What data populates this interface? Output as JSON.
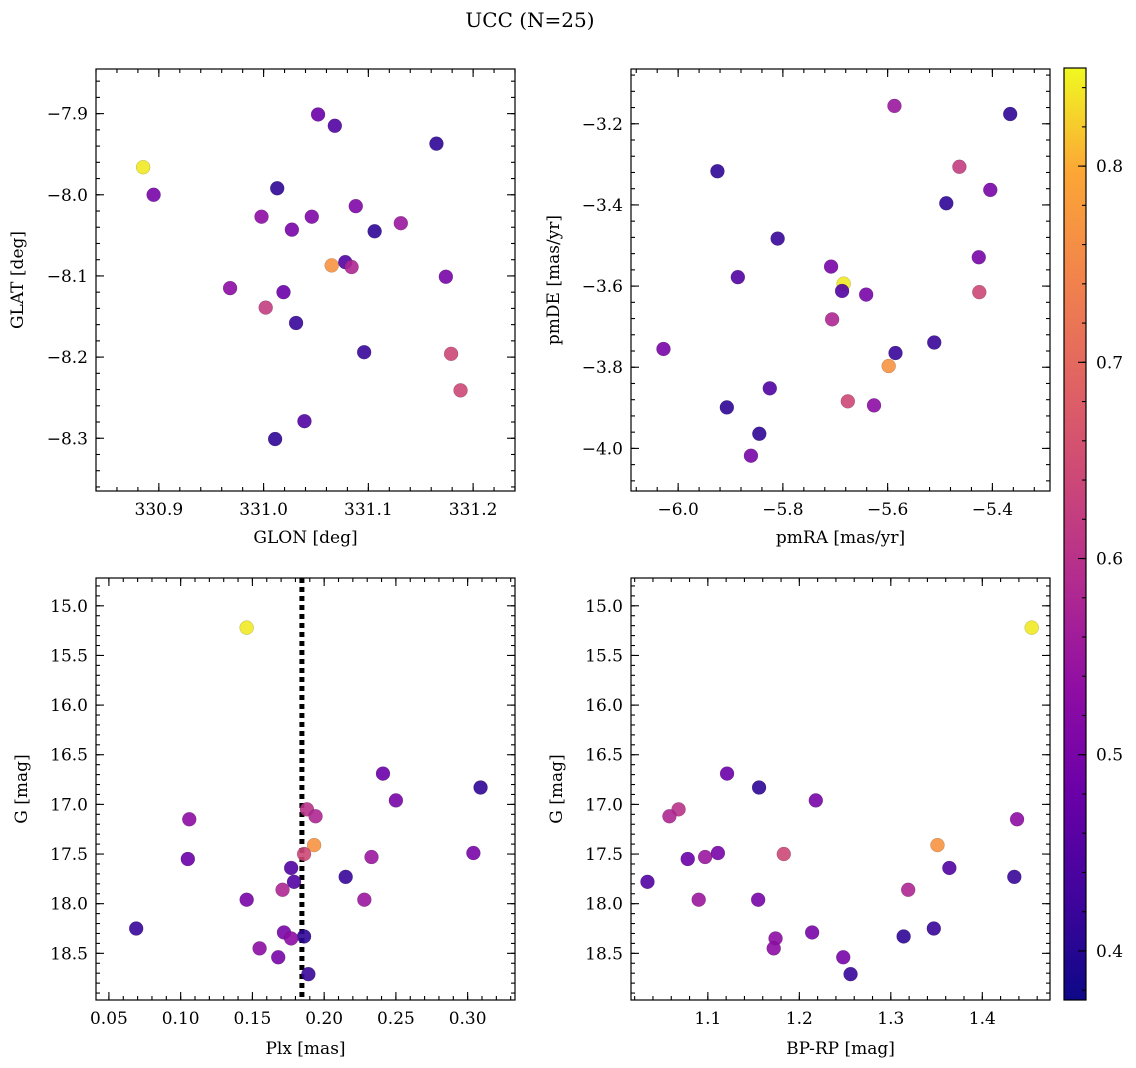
{
  "title": "UCC (N=25)",
  "colorbar": {
    "min": 0.375,
    "max": 0.85,
    "ticks": [
      0.4,
      0.5,
      0.6,
      0.7,
      0.8
    ],
    "tick_labels": [
      "0.4",
      "0.5",
      "0.6",
      "0.7",
      "0.8"
    ]
  },
  "chart_data": [
    {
      "type": "scatter",
      "xlabel": "GLON [deg]",
      "ylabel": "GLAT [deg]",
      "xlim": [
        330.84,
        331.24
      ],
      "ylim": [
        -8.365,
        -7.845
      ],
      "xticks": [
        330.9,
        331.0,
        331.1,
        331.2
      ],
      "xtick_labels": [
        "330.9",
        "331.0",
        "331.1",
        "331.2"
      ],
      "yticks": [
        -8.3,
        -8.2,
        -8.1,
        -8.0,
        -7.9
      ],
      "ytick_labels": [
        "−8.3",
        "−8.2",
        "−8.1",
        "−8.0",
        "−7.9"
      ],
      "x_minor_step": 0.02,
      "y_minor_step": 0.02,
      "points": [
        {
          "x": 330.885,
          "y": -7.966,
          "c": 0.84
        },
        {
          "x": 330.895,
          "y": -8.0,
          "c": 0.5
        },
        {
          "x": 331.052,
          "y": -7.901,
          "c": 0.48
        },
        {
          "x": 331.068,
          "y": -7.915,
          "c": 0.45
        },
        {
          "x": 331.165,
          "y": -7.937,
          "c": 0.41
        },
        {
          "x": 331.013,
          "y": -7.992,
          "c": 0.41
        },
        {
          "x": 330.998,
          "y": -8.027,
          "c": 0.53
        },
        {
          "x": 331.027,
          "y": -8.043,
          "c": 0.5
        },
        {
          "x": 331.046,
          "y": -8.027,
          "c": 0.51
        },
        {
          "x": 331.088,
          "y": -8.014,
          "c": 0.51
        },
        {
          "x": 331.106,
          "y": -8.045,
          "c": 0.41
        },
        {
          "x": 331.131,
          "y": -8.035,
          "c": 0.55
        },
        {
          "x": 331.065,
          "y": -8.087,
          "c": 0.77
        },
        {
          "x": 331.078,
          "y": -8.083,
          "c": 0.45
        },
        {
          "x": 331.084,
          "y": -8.089,
          "c": 0.58
        },
        {
          "x": 330.968,
          "y": -8.115,
          "c": 0.53
        },
        {
          "x": 331.019,
          "y": -8.12,
          "c": 0.48
        },
        {
          "x": 331.002,
          "y": -8.139,
          "c": 0.62
        },
        {
          "x": 331.031,
          "y": -8.158,
          "c": 0.42
        },
        {
          "x": 331.174,
          "y": -8.101,
          "c": 0.5
        },
        {
          "x": 331.096,
          "y": -8.194,
          "c": 0.42
        },
        {
          "x": 331.179,
          "y": -8.196,
          "c": 0.64
        },
        {
          "x": 331.188,
          "y": -8.241,
          "c": 0.64
        },
        {
          "x": 331.039,
          "y": -8.279,
          "c": 0.45
        },
        {
          "x": 331.011,
          "y": -8.301,
          "c": 0.41
        }
      ]
    },
    {
      "type": "scatter",
      "xlabel": "pmRA [mas/yr]",
      "ylabel": "pmDE [mas/yr]",
      "xlim": [
        -6.09,
        -5.29
      ],
      "ylim": [
        -4.105,
        -3.065
      ],
      "xticks": [
        -6.0,
        -5.8,
        -5.6,
        -5.4
      ],
      "xtick_labels": [
        "−6.0",
        "−5.8",
        "−5.6",
        "−5.4"
      ],
      "yticks": [
        -4.0,
        -3.8,
        -3.6,
        -3.4,
        -3.2
      ],
      "ytick_labels": [
        "−4.0",
        "−3.8",
        "−3.6",
        "−3.4",
        "−3.2"
      ],
      "x_minor_step": 0.04,
      "y_minor_step": 0.04,
      "points": [
        {
          "x": -5.587,
          "y": -3.156,
          "c": 0.55
        },
        {
          "x": -5.366,
          "y": -3.176,
          "c": 0.41
        },
        {
          "x": -5.925,
          "y": -3.317,
          "c": 0.41
        },
        {
          "x": -5.463,
          "y": -3.306,
          "c": 0.62
        },
        {
          "x": -5.404,
          "y": -3.363,
          "c": 0.5
        },
        {
          "x": -5.488,
          "y": -3.396,
          "c": 0.41
        },
        {
          "x": -5.81,
          "y": -3.483,
          "c": 0.42
        },
        {
          "x": -5.708,
          "y": -3.552,
          "c": 0.5
        },
        {
          "x": -5.426,
          "y": -3.529,
          "c": 0.5
        },
        {
          "x": -5.886,
          "y": -3.578,
          "c": 0.45
        },
        {
          "x": -5.684,
          "y": -3.594,
          "c": 0.84
        },
        {
          "x": -5.687,
          "y": -3.612,
          "c": 0.45
        },
        {
          "x": -5.641,
          "y": -3.621,
          "c": 0.5
        },
        {
          "x": -5.425,
          "y": -3.615,
          "c": 0.64
        },
        {
          "x": -5.706,
          "y": -3.682,
          "c": 0.58
        },
        {
          "x": -6.028,
          "y": -3.755,
          "c": 0.5
        },
        {
          "x": -5.585,
          "y": -3.765,
          "c": 0.42
        },
        {
          "x": -5.511,
          "y": -3.739,
          "c": 0.42
        },
        {
          "x": -5.598,
          "y": -3.797,
          "c": 0.77
        },
        {
          "x": -5.825,
          "y": -3.852,
          "c": 0.45
        },
        {
          "x": -5.676,
          "y": -3.884,
          "c": 0.64
        },
        {
          "x": -5.626,
          "y": -3.894,
          "c": 0.53
        },
        {
          "x": -5.907,
          "y": -3.899,
          "c": 0.41
        },
        {
          "x": -5.845,
          "y": -3.964,
          "c": 0.41
        },
        {
          "x": -5.861,
          "y": -4.018,
          "c": 0.5
        }
      ]
    },
    {
      "type": "scatter",
      "xlabel": "Plx [mas]",
      "ylabel": "G [mag]",
      "xlim": [
        0.041,
        0.333
      ],
      "ylim": [
        18.97,
        14.72
      ],
      "y_inverted": true,
      "xticks": [
        0.05,
        0.1,
        0.15,
        0.2,
        0.25,
        0.3
      ],
      "xtick_labels": [
        "0.05",
        "0.10",
        "0.15",
        "0.20",
        "0.25",
        "0.30"
      ],
      "yticks": [
        15.0,
        15.5,
        16.0,
        16.5,
        17.0,
        17.5,
        18.0,
        18.5
      ],
      "ytick_labels": [
        "15.0",
        "15.5",
        "16.0",
        "16.5",
        "17.0",
        "17.5",
        "18.0",
        "18.5"
      ],
      "x_minor_step": 0.01,
      "y_minor_step": 0.1,
      "vline": {
        "x": 0.1845,
        "style": "dotted"
      },
      "points": [
        {
          "x": 0.146,
          "y": 15.22,
          "c": 0.84
        },
        {
          "x": 0.241,
          "y": 16.69,
          "c": 0.48
        },
        {
          "x": 0.309,
          "y": 16.83,
          "c": 0.41
        },
        {
          "x": 0.25,
          "y": 16.96,
          "c": 0.5
        },
        {
          "x": 0.188,
          "y": 17.05,
          "c": 0.6
        },
        {
          "x": 0.194,
          "y": 17.12,
          "c": 0.58
        },
        {
          "x": 0.106,
          "y": 17.15,
          "c": 0.53
        },
        {
          "x": 0.193,
          "y": 17.41,
          "c": 0.77
        },
        {
          "x": 0.186,
          "y": 17.5,
          "c": 0.64
        },
        {
          "x": 0.304,
          "y": 17.49,
          "c": 0.5
        },
        {
          "x": 0.233,
          "y": 17.53,
          "c": 0.55
        },
        {
          "x": 0.105,
          "y": 17.55,
          "c": 0.48
        },
        {
          "x": 0.177,
          "y": 17.64,
          "c": 0.45
        },
        {
          "x": 0.215,
          "y": 17.73,
          "c": 0.42
        },
        {
          "x": 0.179,
          "y": 17.78,
          "c": 0.45
        },
        {
          "x": 0.171,
          "y": 17.86,
          "c": 0.58
        },
        {
          "x": 0.228,
          "y": 17.96,
          "c": 0.55
        },
        {
          "x": 0.146,
          "y": 17.96,
          "c": 0.5
        },
        {
          "x": 0.069,
          "y": 18.25,
          "c": 0.42
        },
        {
          "x": 0.172,
          "y": 18.29,
          "c": 0.5
        },
        {
          "x": 0.186,
          "y": 18.33,
          "c": 0.41
        },
        {
          "x": 0.177,
          "y": 18.35,
          "c": 0.53
        },
        {
          "x": 0.155,
          "y": 18.45,
          "c": 0.53
        },
        {
          "x": 0.168,
          "y": 18.54,
          "c": 0.5
        },
        {
          "x": 0.189,
          "y": 18.71,
          "c": 0.42
        }
      ]
    },
    {
      "type": "scatter",
      "xlabel": "BP-RP [mag]",
      "ylabel": "G [mag]",
      "xlim": [
        1.016,
        1.474
      ],
      "ylim": [
        18.97,
        14.72
      ],
      "y_inverted": true,
      "xticks": [
        1.1,
        1.2,
        1.3,
        1.4
      ],
      "xtick_labels": [
        "1.1",
        "1.2",
        "1.3",
        "1.4"
      ],
      "yticks": [
        15.0,
        15.5,
        16.0,
        16.5,
        17.0,
        17.5,
        18.0,
        18.5
      ],
      "ytick_labels": [
        "15.0",
        "15.5",
        "16.0",
        "16.5",
        "17.0",
        "17.5",
        "18.0",
        "18.5"
      ],
      "x_minor_step": 0.02,
      "y_minor_step": 0.1,
      "points": [
        {
          "x": 1.454,
          "y": 15.22,
          "c": 0.84
        },
        {
          "x": 1.121,
          "y": 16.69,
          "c": 0.48
        },
        {
          "x": 1.156,
          "y": 16.83,
          "c": 0.41
        },
        {
          "x": 1.218,
          "y": 16.96,
          "c": 0.5
        },
        {
          "x": 1.068,
          "y": 17.05,
          "c": 0.6
        },
        {
          "x": 1.058,
          "y": 17.12,
          "c": 0.58
        },
        {
          "x": 1.438,
          "y": 17.15,
          "c": 0.53
        },
        {
          "x": 1.351,
          "y": 17.41,
          "c": 0.77
        },
        {
          "x": 1.183,
          "y": 17.5,
          "c": 0.64
        },
        {
          "x": 1.111,
          "y": 17.49,
          "c": 0.5
        },
        {
          "x": 1.097,
          "y": 17.53,
          "c": 0.55
        },
        {
          "x": 1.078,
          "y": 17.55,
          "c": 0.48
        },
        {
          "x": 1.364,
          "y": 17.64,
          "c": 0.45
        },
        {
          "x": 1.435,
          "y": 17.73,
          "c": 0.42
        },
        {
          "x": 1.034,
          "y": 17.78,
          "c": 0.45
        },
        {
          "x": 1.319,
          "y": 17.86,
          "c": 0.58
        },
        {
          "x": 1.09,
          "y": 17.96,
          "c": 0.55
        },
        {
          "x": 1.155,
          "y": 17.96,
          "c": 0.5
        },
        {
          "x": 1.347,
          "y": 18.25,
          "c": 0.42
        },
        {
          "x": 1.214,
          "y": 18.29,
          "c": 0.5
        },
        {
          "x": 1.314,
          "y": 18.33,
          "c": 0.41
        },
        {
          "x": 1.174,
          "y": 18.35,
          "c": 0.53
        },
        {
          "x": 1.172,
          "y": 18.45,
          "c": 0.53
        },
        {
          "x": 1.248,
          "y": 18.54,
          "c": 0.5
        },
        {
          "x": 1.256,
          "y": 18.71,
          "c": 0.42
        }
      ]
    }
  ]
}
